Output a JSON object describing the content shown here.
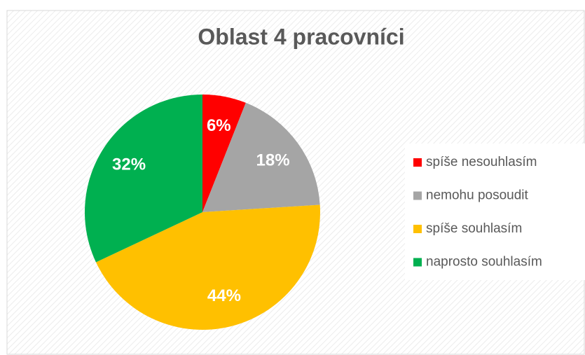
{
  "chart_data": {
    "type": "pie",
    "title": "Oblast 4 pracovníci",
    "categories": [
      "spíše nesouhlasím",
      "nemohu posoudit",
      "spíše souhlasím",
      "naprosto souhlasím"
    ],
    "values": [
      6,
      18,
      44,
      32
    ],
    "value_labels": [
      "6%",
      "18%",
      "44%",
      "32%"
    ],
    "colors": [
      "#ff0000",
      "#a5a5a5",
      "#ffc000",
      "#00b050"
    ],
    "legend": "right"
  }
}
